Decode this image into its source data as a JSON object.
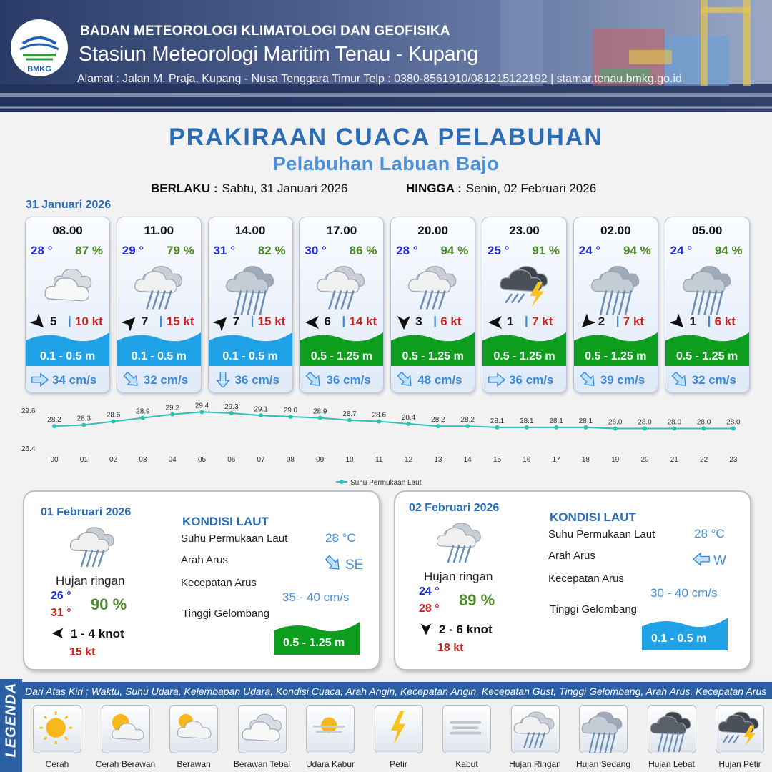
{
  "header": {
    "logo_text": "BMKG",
    "agency": "BADAN METEOROLOGI KLIMATOLOGI DAN GEOFISIKA",
    "station": "Stasiun Meteorologi Maritim Tenau - Kupang",
    "address": "Alamat : Jalan M. Praja, Kupang - Nusa Tenggara Timur Telp : 0380-8561910/081215122192  | stamar.tenau.bmkg.go.id"
  },
  "title": "PRAKIRAAN CUACA PELABUHAN",
  "subtitle": "Pelabuhan Labuan Bajo",
  "validity": {
    "from_label": "BERLAKU :",
    "from_value": "Sabtu, 31 Januari 2026",
    "to_label": "HINGGA :",
    "to_value": "Senin, 02 Februari 2026"
  },
  "day0_label": "31 Januari 2026",
  "hourly": [
    {
      "time": "08.00",
      "temp": "28 °",
      "rh": "87 %",
      "icon": "berawan-tebal",
      "wind_dir": "SE",
      "wind_dir_deg": 135,
      "wind": "5",
      "gust": "10 kt",
      "wave": "0.1 - 0.5 m",
      "wave_color": "#1fa3e6",
      "cur_dir_deg": 0,
      "current": "34 cm/s"
    },
    {
      "time": "11.00",
      "temp": "29 °",
      "rh": "79 %",
      "icon": "hujan-ringan",
      "wind_dir": "NE",
      "wind_dir_deg": 45,
      "wind": "7",
      "gust": "15 kt",
      "wave": "0.1 - 0.5 m",
      "wave_color": "#1fa3e6",
      "cur_dir_deg": 45,
      "current": "32 cm/s"
    },
    {
      "time": "14.00",
      "temp": "31 °",
      "rh": "82 %",
      "icon": "hujan-sedang",
      "wind_dir": "NE",
      "wind_dir_deg": 45,
      "wind": "7",
      "gust": "15 kt",
      "wave": "0.1 - 0.5 m",
      "wave_color": "#1fa3e6",
      "cur_dir_deg": 90,
      "current": "36 cm/s"
    },
    {
      "time": "17.00",
      "temp": "30 °",
      "rh": "86 %",
      "icon": "hujan-ringan",
      "wind_dir": "W",
      "wind_dir_deg": 270,
      "wind": "6",
      "gust": "14 kt",
      "wave": "0.5 - 1.25 m",
      "wave_color": "#0e9e1e",
      "cur_dir_deg": 45,
      "current": "36 cm/s"
    },
    {
      "time": "20.00",
      "temp": "28 °",
      "rh": "94 %",
      "icon": "hujan-ringan",
      "wind_dir": "S",
      "wind_dir_deg": 180,
      "wind": "3",
      "gust": "6 kt",
      "wave": "0.5 - 1.25 m",
      "wave_color": "#0e9e1e",
      "cur_dir_deg": 45,
      "current": "48 cm/s"
    },
    {
      "time": "23.00",
      "temp": "25 °",
      "rh": "91 %",
      "icon": "hujan-petir",
      "wind_dir": "W",
      "wind_dir_deg": 270,
      "wind": "1",
      "gust": "7 kt",
      "wave": "0.5 - 1.25 m",
      "wave_color": "#0e9e1e",
      "cur_dir_deg": 0,
      "current": "36 cm/s"
    },
    {
      "time": "02.00",
      "temp": "24 °",
      "rh": "94 %",
      "icon": "hujan-sedang",
      "wind_dir": "SW",
      "wind_dir_deg": 225,
      "wind": "2",
      "gust": "7 kt",
      "wave": "0.5 - 1.25 m",
      "wave_color": "#0e9e1e",
      "cur_dir_deg": 45,
      "current": "39 cm/s"
    },
    {
      "time": "05.00",
      "temp": "24 °",
      "rh": "94 %",
      "icon": "hujan-sedang",
      "wind_dir": "SE",
      "wind_dir_deg": 135,
      "wind": "1",
      "gust": "6 kt",
      "wave": "0.5 - 1.25 m",
      "wave_color": "#0e9e1e",
      "cur_dir_deg": 45,
      "current": "32 cm/s"
    }
  ],
  "chart_data": {
    "type": "line",
    "categories": [
      "00",
      "01",
      "02",
      "03",
      "04",
      "05",
      "06",
      "07",
      "08",
      "09",
      "10",
      "11",
      "12",
      "13",
      "14",
      "15",
      "16",
      "17",
      "18",
      "19",
      "20",
      "21",
      "22",
      "23"
    ],
    "series": [
      {
        "name": "Suhu Permukaan Laut",
        "values": [
          28.2,
          28.3,
          28.6,
          28.9,
          29.2,
          29.4,
          29.3,
          29.1,
          29.0,
          28.9,
          28.7,
          28.6,
          28.4,
          28.2,
          28.2,
          28.1,
          28.1,
          28.1,
          28.1,
          28.0,
          28.0,
          28.0,
          28.0,
          28.0
        ]
      }
    ],
    "y_ticks": [
      "29.6",
      "26.4"
    ],
    "ylim": [
      26.4,
      29.6
    ],
    "color": "#2cc1b4",
    "legend": "bottom-center",
    "grid": false
  },
  "days": [
    {
      "date": "01 Februari 2026",
      "condition": "Hujan ringan",
      "tmin": "26 °",
      "tmax": "31 °",
      "rh": "90 %",
      "wind": "1  - 4 knot",
      "wind_dir_deg": 270,
      "gust": "15 kt",
      "kondisi_label": "KONDISI LAUT",
      "sst_label": "Suhu Permukaan Laut",
      "sst": "28 °C",
      "arah_label": "Arah Arus",
      "arah": "SE",
      "arah_deg": 45,
      "kec_label": "Kecepatan Arus",
      "kec": "35 - 40 cm/s",
      "tg_label": "Tinggi Gelombang",
      "wave": "0.5 - 1.25 m",
      "wave_color": "#0e9e1e"
    },
    {
      "date": "02 Februari 2026",
      "condition": "Hujan ringan",
      "tmin": "24 °",
      "tmax": "28 °",
      "rh": "89 %",
      "wind": "2  - 6 knot",
      "wind_dir_deg": 180,
      "gust": "18 kt",
      "kondisi_label": "KONDISI LAUT",
      "sst_label": "Suhu Permukaan Laut",
      "sst": "28 °C",
      "arah_label": "Arah Arus",
      "arah": "W",
      "arah_deg": 180,
      "kec_label": "Kecepatan Arus",
      "kec": "30 - 40 cm/s",
      "tg_label": "Tinggi Gelombang",
      "wave": "0.1 - 0.5 m",
      "wave_color": "#1fa3e6"
    }
  ],
  "legend": {
    "title": "LEGENDA",
    "desc": "Dari Atas Kiri : Waktu, Suhu Udara, Kelembapan Udara, Kondisi Cuaca, Arah Angin, Kecepatan Angin, Kecepatan Gust, Tinggi Gelombang, Arah Arus, Kecepatan Arus",
    "items": [
      {
        "label": "Cerah",
        "icon": "cerah"
      },
      {
        "label": "Cerah Berawan",
        "icon": "cerah-berawan"
      },
      {
        "label": "Berawan",
        "icon": "berawan"
      },
      {
        "label": "Berawan Tebal",
        "icon": "berawan-tebal"
      },
      {
        "label": "Udara Kabur",
        "icon": "udara-kabur"
      },
      {
        "label": "Petir",
        "icon": "petir"
      },
      {
        "label": "Kabut",
        "icon": "kabut"
      },
      {
        "label": "Hujan Ringan",
        "icon": "hujan-ringan"
      },
      {
        "label": "Hujan Sedang",
        "icon": "hujan-sedang"
      },
      {
        "label": "Hujan Lebat",
        "icon": "hujan-lebat"
      },
      {
        "label": "Hujan Petir",
        "icon": "hujan-petir"
      }
    ]
  }
}
